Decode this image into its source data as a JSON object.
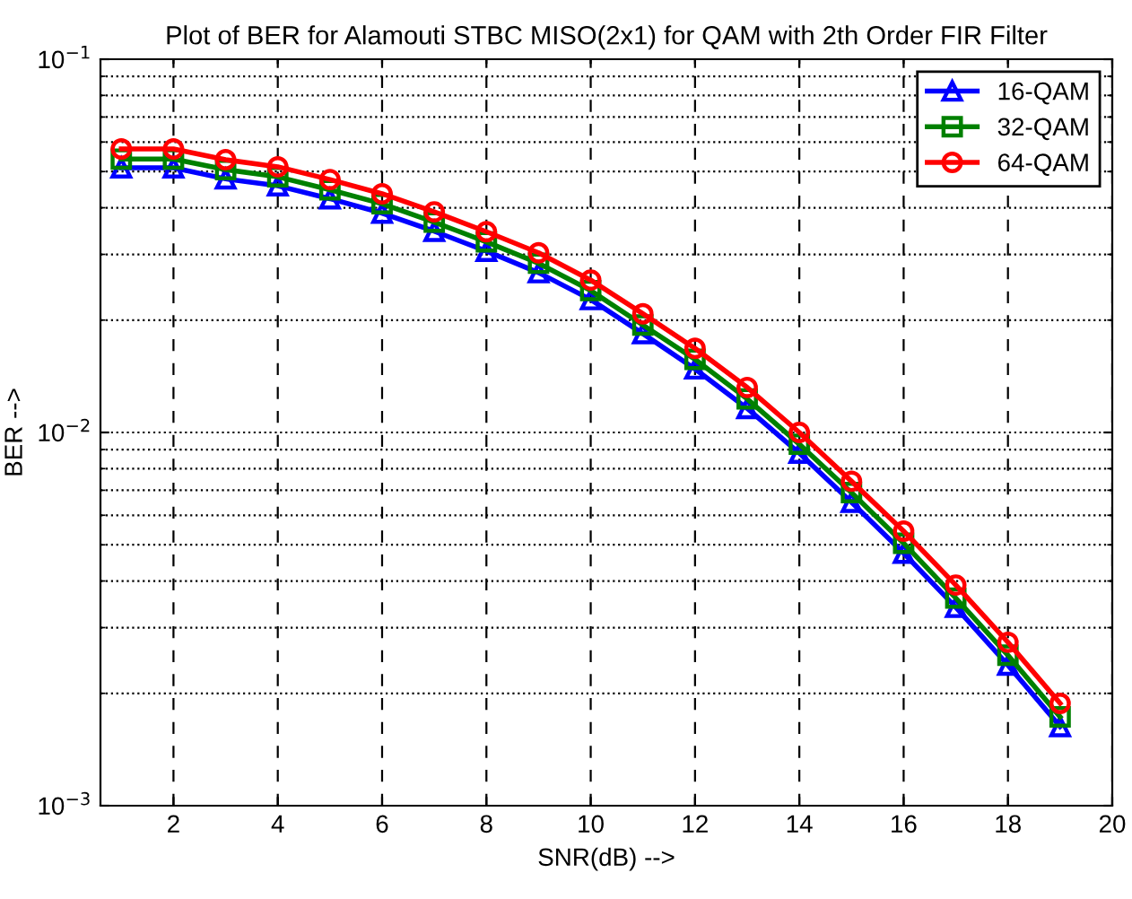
{
  "chart_data": {
    "type": "line",
    "title": "Plot of BER for Alamouti STBC MISO(2x1) for QAM with 2th Order FIR Filter",
    "xlabel": "SNR(dB) -->",
    "ylabel": "BER -->",
    "x": [
      1,
      2,
      3,
      4,
      5,
      6,
      7,
      8,
      9,
      10,
      11,
      12,
      13,
      14,
      15,
      16,
      17,
      18,
      19
    ],
    "series": [
      {
        "name": "16-QAM",
        "color": "#0000ff",
        "marker": "triangle",
        "values": [
          0.0512,
          0.0512,
          0.0478,
          0.0458,
          0.0423,
          0.0387,
          0.0346,
          0.0306,
          0.0268,
          0.0227,
          0.0184,
          0.0148,
          0.0116,
          0.0088,
          0.0065,
          0.00475,
          0.0034,
          0.00238,
          0.00163
        ]
      },
      {
        "name": "32-QAM",
        "color": "#008000",
        "marker": "square",
        "values": [
          0.054,
          0.054,
          0.0506,
          0.0484,
          0.0447,
          0.041,
          0.0366,
          0.0324,
          0.0284,
          0.024,
          0.0194,
          0.0157,
          0.0123,
          0.0093,
          0.0069,
          0.00505,
          0.0036,
          0.00253,
          0.00173
        ]
      },
      {
        "name": "64-QAM",
        "color": "#ff0000",
        "marker": "circle",
        "values": [
          0.0575,
          0.0575,
          0.0538,
          0.0515,
          0.0476,
          0.0436,
          0.039,
          0.0345,
          0.0303,
          0.0256,
          0.0208,
          0.0168,
          0.0132,
          0.01,
          0.0074,
          0.00544,
          0.0039,
          0.00274,
          0.00188
        ]
      }
    ],
    "log": "y",
    "xlim": [
      0.6,
      20
    ],
    "xticks": [
      2,
      4,
      6,
      8,
      10,
      12,
      14,
      16,
      18,
      20
    ],
    "ylim": [
      0.001,
      0.1
    ],
    "yticks": [
      {
        "value": 0.001,
        "label": "10$^{−3}$"
      },
      {
        "value": 0.01,
        "label": "10$^{−2}$"
      },
      {
        "value": 0.1,
        "label": "10$^{−1}$"
      }
    ],
    "grid": true,
    "legend": "top right",
    "line_style": "solid"
  }
}
